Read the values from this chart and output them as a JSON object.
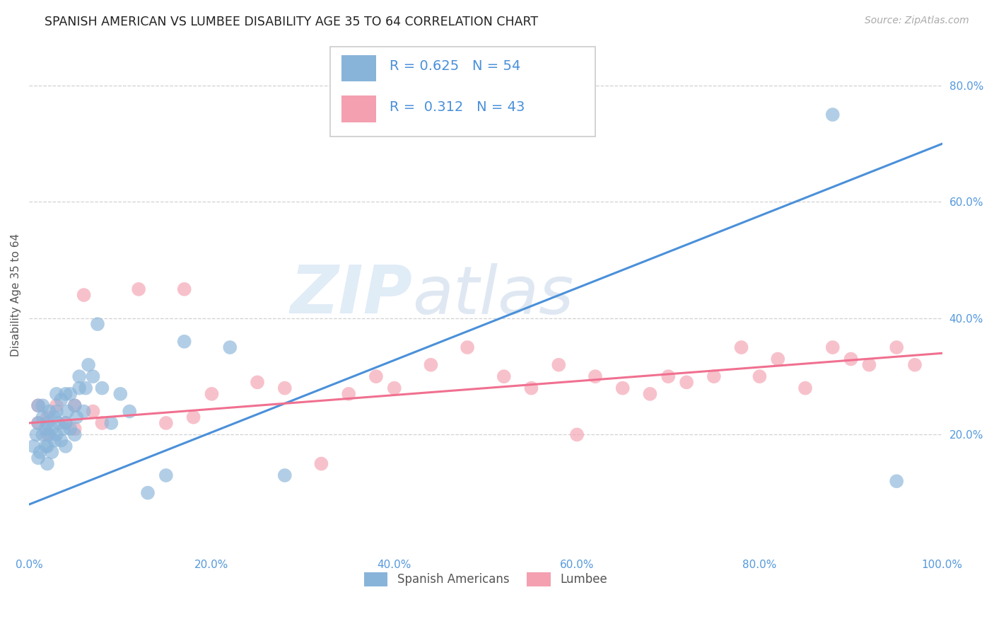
{
  "title": "SPANISH AMERICAN VS LUMBEE DISABILITY AGE 35 TO 64 CORRELATION CHART",
  "source": "Source: ZipAtlas.com",
  "ylabel": "Disability Age 35 to 64",
  "xlim": [
    0.0,
    1.0
  ],
  "ylim": [
    0.0,
    0.88
  ],
  "x_ticks": [
    0.0,
    0.2,
    0.4,
    0.6,
    0.8,
    1.0
  ],
  "x_tick_labels": [
    "0.0%",
    "20.0%",
    "40.0%",
    "60.0%",
    "80.0%",
    "100.0%"
  ],
  "y_ticks_right": [
    0.2,
    0.4,
    0.6,
    0.8
  ],
  "y_tick_labels_right": [
    "20.0%",
    "40.0%",
    "60.0%",
    "80.0%"
  ],
  "grid_color": "#cccccc",
  "background_color": "#ffffff",
  "blue_color": "#89b4d9",
  "pink_color": "#f4a0b0",
  "line_blue": "#4a90d9",
  "line_pink": "#f07090",
  "blue_trendline_x": [
    0.0,
    1.0
  ],
  "blue_trendline_y": [
    0.08,
    0.7
  ],
  "pink_trendline_x": [
    0.0,
    1.0
  ],
  "pink_trendline_y": [
    0.22,
    0.34
  ],
  "spanish_x": [
    0.005,
    0.008,
    0.01,
    0.01,
    0.01,
    0.012,
    0.015,
    0.015,
    0.015,
    0.018,
    0.018,
    0.02,
    0.02,
    0.02,
    0.022,
    0.022,
    0.025,
    0.025,
    0.028,
    0.028,
    0.03,
    0.03,
    0.03,
    0.032,
    0.035,
    0.035,
    0.038,
    0.04,
    0.04,
    0.04,
    0.042,
    0.045,
    0.045,
    0.05,
    0.05,
    0.052,
    0.055,
    0.055,
    0.06,
    0.062,
    0.065,
    0.07,
    0.075,
    0.08,
    0.09,
    0.1,
    0.11,
    0.13,
    0.15,
    0.17,
    0.22,
    0.28,
    0.88,
    0.95
  ],
  "spanish_y": [
    0.18,
    0.2,
    0.16,
    0.22,
    0.25,
    0.17,
    0.2,
    0.23,
    0.25,
    0.18,
    0.21,
    0.15,
    0.18,
    0.22,
    0.2,
    0.24,
    0.17,
    0.21,
    0.19,
    0.23,
    0.2,
    0.24,
    0.27,
    0.22,
    0.19,
    0.26,
    0.21,
    0.18,
    0.22,
    0.27,
    0.24,
    0.21,
    0.27,
    0.2,
    0.25,
    0.23,
    0.28,
    0.3,
    0.24,
    0.28,
    0.32,
    0.3,
    0.39,
    0.28,
    0.22,
    0.27,
    0.24,
    0.1,
    0.13,
    0.36,
    0.35,
    0.13,
    0.75,
    0.12
  ],
  "lumbee_x": [
    0.01,
    0.01,
    0.02,
    0.02,
    0.03,
    0.04,
    0.05,
    0.05,
    0.06,
    0.07,
    0.08,
    0.12,
    0.15,
    0.17,
    0.18,
    0.2,
    0.25,
    0.28,
    0.32,
    0.35,
    0.38,
    0.4,
    0.44,
    0.48,
    0.52,
    0.55,
    0.58,
    0.6,
    0.62,
    0.65,
    0.68,
    0.7,
    0.72,
    0.75,
    0.78,
    0.8,
    0.82,
    0.85,
    0.88,
    0.9,
    0.92,
    0.95,
    0.97
  ],
  "lumbee_y": [
    0.22,
    0.25,
    0.2,
    0.23,
    0.25,
    0.22,
    0.21,
    0.25,
    0.44,
    0.24,
    0.22,
    0.45,
    0.22,
    0.45,
    0.23,
    0.27,
    0.29,
    0.28,
    0.15,
    0.27,
    0.3,
    0.28,
    0.32,
    0.35,
    0.3,
    0.28,
    0.32,
    0.2,
    0.3,
    0.28,
    0.27,
    0.3,
    0.29,
    0.3,
    0.35,
    0.3,
    0.33,
    0.28,
    0.35,
    0.33,
    0.32,
    0.35,
    0.32
  ]
}
